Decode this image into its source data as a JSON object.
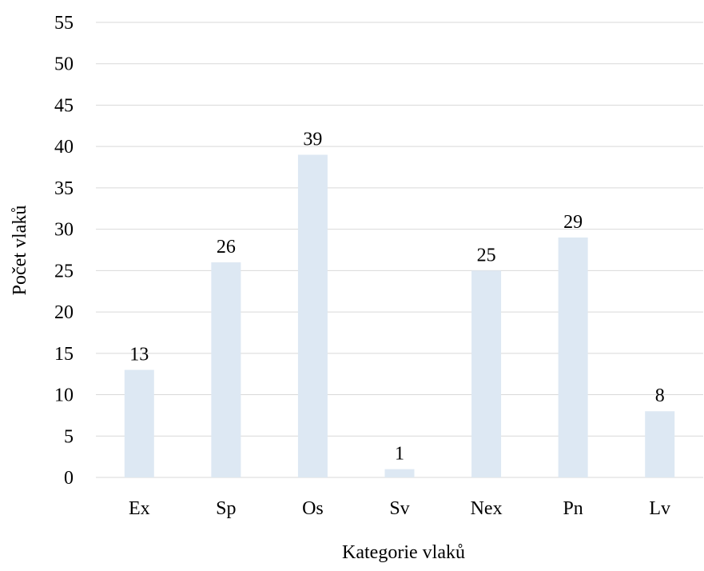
{
  "chart_data": {
    "type": "bar",
    "title": "",
    "xlabel": "Kategorie vlaků",
    "ylabel": "Počet vlaků",
    "categories": [
      "Ex",
      "Sp",
      "Os",
      "Sv",
      "Nex",
      "Pn",
      "Lv"
    ],
    "values": [
      13,
      26,
      39,
      1,
      25,
      29,
      8
    ],
    "ylim": [
      0,
      55
    ],
    "yticks": [
      0,
      5,
      10,
      15,
      20,
      25,
      30,
      35,
      40,
      45,
      50,
      55
    ],
    "data_labels": true,
    "grid": "horizontal",
    "legend": "none",
    "colors": {
      "bar": "#dde8f3",
      "grid": "#d9d9d9",
      "baseline": "#d9d9d9",
      "text": "#000000"
    }
  }
}
